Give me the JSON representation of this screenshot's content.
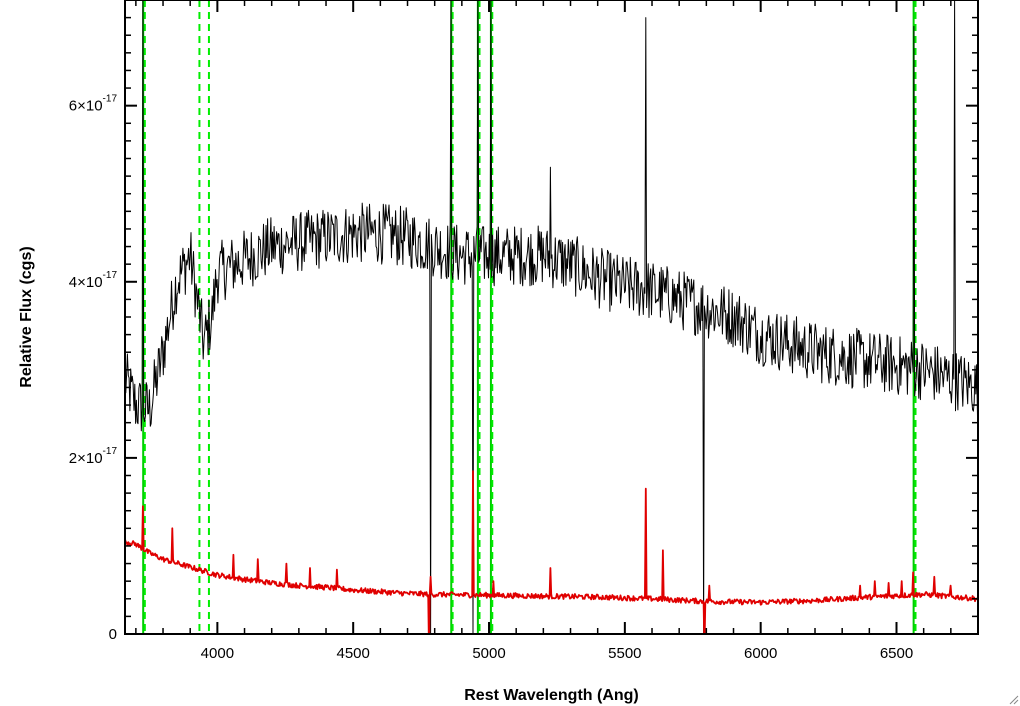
{
  "chart_data": {
    "type": "line",
    "title": "",
    "xlabel": "Rest Wavelength (Ang)",
    "ylabel": "Relative Flux (cgs)",
    "xlim": [
      3660,
      6800
    ],
    "ylim": [
      0,
      7.2e-17
    ],
    "grid": false,
    "legend": "none",
    "x_ticks": [
      4000,
      4500,
      5000,
      5500,
      6000,
      6500
    ],
    "x_tick_labels": [
      "4000",
      "4500",
      "5000",
      "5500",
      "6000",
      "6500"
    ],
    "y_ticks": [
      0,
      2e-17,
      4e-17,
      6e-17
    ],
    "y_tick_labels": [
      {
        "mant": "0",
        "exp": ""
      },
      {
        "mant": "2×10",
        "exp": "-17"
      },
      {
        "mant": "4×10",
        "exp": "-17"
      },
      {
        "mant": "6×10",
        "exp": "-17"
      }
    ],
    "series": [
      {
        "color": "#000000",
        "style": "noisy-spectrum",
        "points": [
          [
            3660,
            2.9e-17
          ],
          [
            3700,
            2.6e-17
          ],
          [
            3750,
            2.55e-17
          ],
          [
            3800,
            3.2e-17
          ],
          [
            3850,
            4e-17
          ],
          [
            3900,
            4.3e-17
          ],
          [
            3950,
            3.3e-17
          ],
          [
            3980,
            3.6e-17
          ],
          [
            4000,
            4.1e-17
          ],
          [
            4100,
            4.25e-17
          ],
          [
            4200,
            4.4e-17
          ],
          [
            4300,
            4.45e-17
          ],
          [
            4400,
            4.5e-17
          ],
          [
            4500,
            4.55e-17
          ],
          [
            4600,
            4.55e-17
          ],
          [
            4700,
            4.5e-17
          ],
          [
            4800,
            4.4e-17
          ],
          [
            4900,
            4.3e-17
          ],
          [
            5000,
            4.3e-17
          ],
          [
            5100,
            4.3e-17
          ],
          [
            5200,
            4.3e-17
          ],
          [
            5300,
            4.2e-17
          ],
          [
            5400,
            4.05e-17
          ],
          [
            5500,
            3.95e-17
          ],
          [
            5600,
            3.9e-17
          ],
          [
            5700,
            3.8e-17
          ],
          [
            5800,
            3.7e-17
          ],
          [
            5900,
            3.6e-17
          ],
          [
            6000,
            3.4e-17
          ],
          [
            6100,
            3.3e-17
          ],
          [
            6200,
            3.2e-17
          ],
          [
            6300,
            3.15e-17
          ],
          [
            6400,
            3.1e-17
          ],
          [
            6500,
            3.05e-17
          ],
          [
            6600,
            3e-17
          ],
          [
            6700,
            2.9e-17
          ],
          [
            6800,
            2.8e-17
          ]
        ],
        "noise_amplitude": 3.5e-18,
        "spikes": [
          {
            "x": 3725,
            "top": 7.2e-17
          },
          {
            "x": 4785,
            "top": 0
          },
          {
            "x": 4861,
            "top": 7.2e-17
          },
          {
            "x": 4940,
            "top": 0
          },
          {
            "x": 4959,
            "top": 7.2e-17
          },
          {
            "x": 5007,
            "top": 7.2e-17
          },
          {
            "x": 5225,
            "top": 5.3e-17
          },
          {
            "x": 5577,
            "top": 7e-17
          },
          {
            "x": 5791,
            "top": 0
          },
          {
            "x": 6563,
            "top": 6.9e-17
          },
          {
            "x": 6715,
            "top": 7.2e-17
          }
        ]
      },
      {
        "color": "#e00000",
        "style": "error-spectrum",
        "points": [
          [
            3660,
            1.05e-17
          ],
          [
            3700,
            1.02e-17
          ],
          [
            3750,
            9.2e-18
          ],
          [
            3800,
            8.5e-18
          ],
          [
            3900,
            7.6e-18
          ],
          [
            4000,
            6.7e-18
          ],
          [
            4100,
            6.2e-18
          ],
          [
            4200,
            5.8e-18
          ],
          [
            4300,
            5.5e-18
          ],
          [
            4400,
            5.3e-18
          ],
          [
            4500,
            5e-18
          ],
          [
            4600,
            4.8e-18
          ],
          [
            4700,
            4.6e-18
          ],
          [
            4800,
            4.5e-18
          ],
          [
            5000,
            4.4e-18
          ],
          [
            5200,
            4.3e-18
          ],
          [
            5400,
            4.2e-18
          ],
          [
            5600,
            4e-18
          ],
          [
            5800,
            3.7e-18
          ],
          [
            6000,
            3.6e-18
          ],
          [
            6200,
            3.8e-18
          ],
          [
            6400,
            4.2e-18
          ],
          [
            6600,
            4.5e-18
          ],
          [
            6800,
            4e-18
          ]
        ],
        "noise_amplitude": 3e-19,
        "spikes": [
          {
            "x": 3727,
            "top": 1.45e-17
          },
          {
            "x": 3835,
            "top": 1.2e-17
          },
          {
            "x": 4060,
            "top": 9e-18
          },
          {
            "x": 4150,
            "top": 8.5e-18
          },
          {
            "x": 4255,
            "top": 8e-18
          },
          {
            "x": 4340,
            "top": 7.5e-18
          },
          {
            "x": 4440,
            "top": 7.3e-18
          },
          {
            "x": 4780,
            "top": -2e-18
          },
          {
            "x": 4785,
            "top": 6.5e-18
          },
          {
            "x": 4941,
            "top": 1.85e-17
          },
          {
            "x": 5015,
            "top": 6e-18
          },
          {
            "x": 5225,
            "top": 7.5e-18
          },
          {
            "x": 5577,
            "top": 1.65e-17
          },
          {
            "x": 5640,
            "top": 9.5e-18
          },
          {
            "x": 5792,
            "top": -2e-18
          },
          {
            "x": 5810,
            "top": 5.5e-18
          },
          {
            "x": 6365,
            "top": 5.5e-18
          },
          {
            "x": 6420,
            "top": 6e-18
          },
          {
            "x": 6470,
            "top": 5.8e-18
          },
          {
            "x": 6520,
            "top": 6e-18
          },
          {
            "x": 6560,
            "top": 7e-18
          },
          {
            "x": 6640,
            "top": 6.5e-18
          },
          {
            "x": 6700,
            "top": 5.5e-18
          }
        ]
      }
    ],
    "vertical_lines": [
      {
        "x": 3727,
        "color": "#00cc00",
        "style": "solid"
      },
      {
        "x": 3733,
        "color": "#00ee00",
        "style": "dashed"
      },
      {
        "x": 3934,
        "color": "#00ee00",
        "style": "dashed"
      },
      {
        "x": 3969,
        "color": "#00ee00",
        "style": "dashed"
      },
      {
        "x": 4861,
        "color": "#00cc00",
        "style": "solid"
      },
      {
        "x": 4866,
        "color": "#00ee00",
        "style": "dashed"
      },
      {
        "x": 4959,
        "color": "#00cc00",
        "style": "solid"
      },
      {
        "x": 4965,
        "color": "#00ee00",
        "style": "dashed"
      },
      {
        "x": 5007,
        "color": "#00cc00",
        "style": "solid"
      },
      {
        "x": 5012,
        "color": "#00ee00",
        "style": "dashed"
      },
      {
        "x": 6563,
        "color": "#00cc00",
        "style": "solid"
      },
      {
        "x": 6570,
        "color": "#00ee00",
        "style": "dashed"
      }
    ]
  }
}
